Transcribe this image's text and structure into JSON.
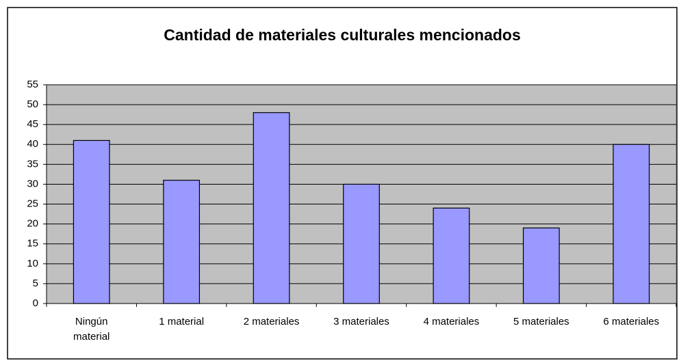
{
  "chart_data": {
    "type": "bar",
    "title": "Cantidad de materiales culturales mencionados",
    "categories": [
      "Ningún material",
      "1 material",
      "2 materiales",
      "3 materiales",
      "4 materiales",
      "5 materiales",
      "6 materiales"
    ],
    "values": [
      41,
      31,
      48,
      30,
      24,
      19,
      40
    ],
    "color": "#9999ff",
    "ylim": [
      0,
      55
    ],
    "yticks": [
      0,
      5,
      10,
      15,
      20,
      25,
      30,
      35,
      40,
      45,
      50,
      55
    ],
    "grid": true
  }
}
